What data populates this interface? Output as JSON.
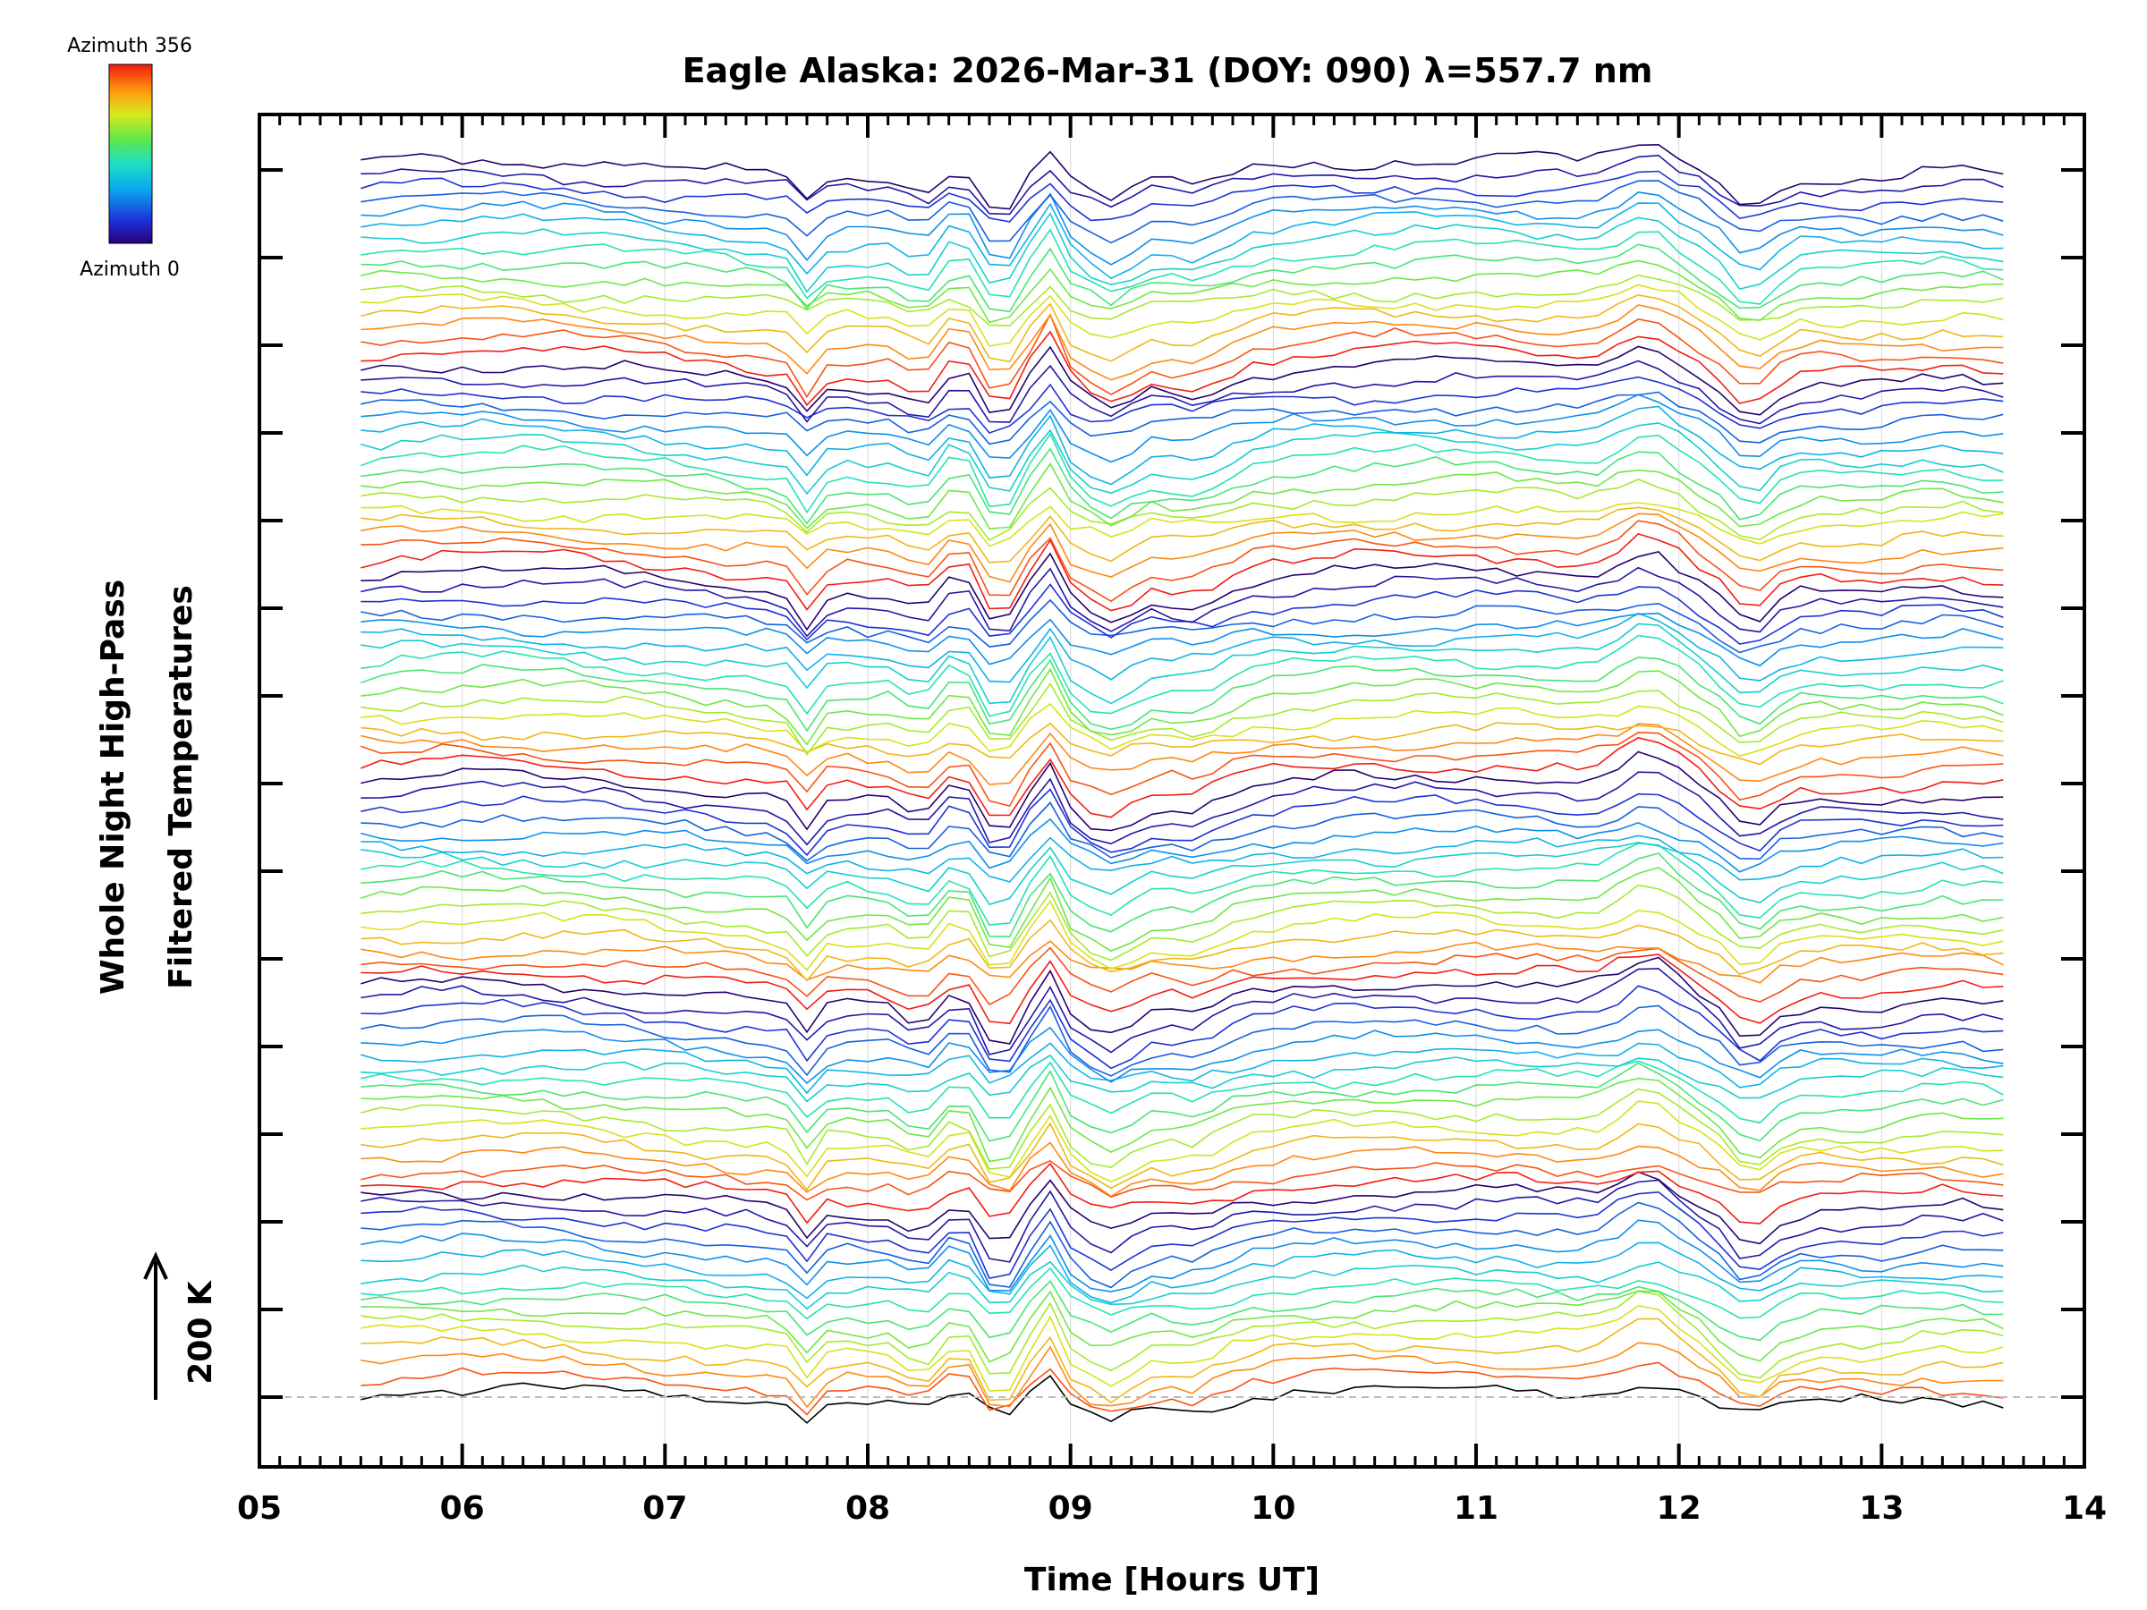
{
  "chart_data": {
    "type": "line",
    "title": "Eagle Alaska: 2026-Mar-31 (DOY: 090) λ=557.7 nm",
    "xlabel": "Time [Hours UT]",
    "ylabel_line1": "Whole Night High-Pass",
    "ylabel_line2": "Filtered Temperatures",
    "scale_label": "200 K",
    "xlim": [
      5,
      14
    ],
    "x_ticks": [
      "05",
      "06",
      "07",
      "08",
      "09",
      "10",
      "11",
      "12",
      "13",
      "14"
    ],
    "data_time_range_hours": [
      5.5,
      13.65
    ],
    "sample_step_hours": 0.1,
    "y_ticks_count": 15,
    "num_traces": 96,
    "trace_spacing_K": 31.5,
    "colorbar": {
      "top_label": "Azimuth 356",
      "bottom_label": "Azimuth 0",
      "colormap": "rainbow"
    },
    "note": "Stacked time series of high-pass filtered temperatures, one trace per azimuth; traces are offset vertically and colored by azimuth (0-356 deg)."
  },
  "colors": {
    "axis": "#000000",
    "gridline": "#dddddd",
    "baseline": "#bbbbbb"
  }
}
